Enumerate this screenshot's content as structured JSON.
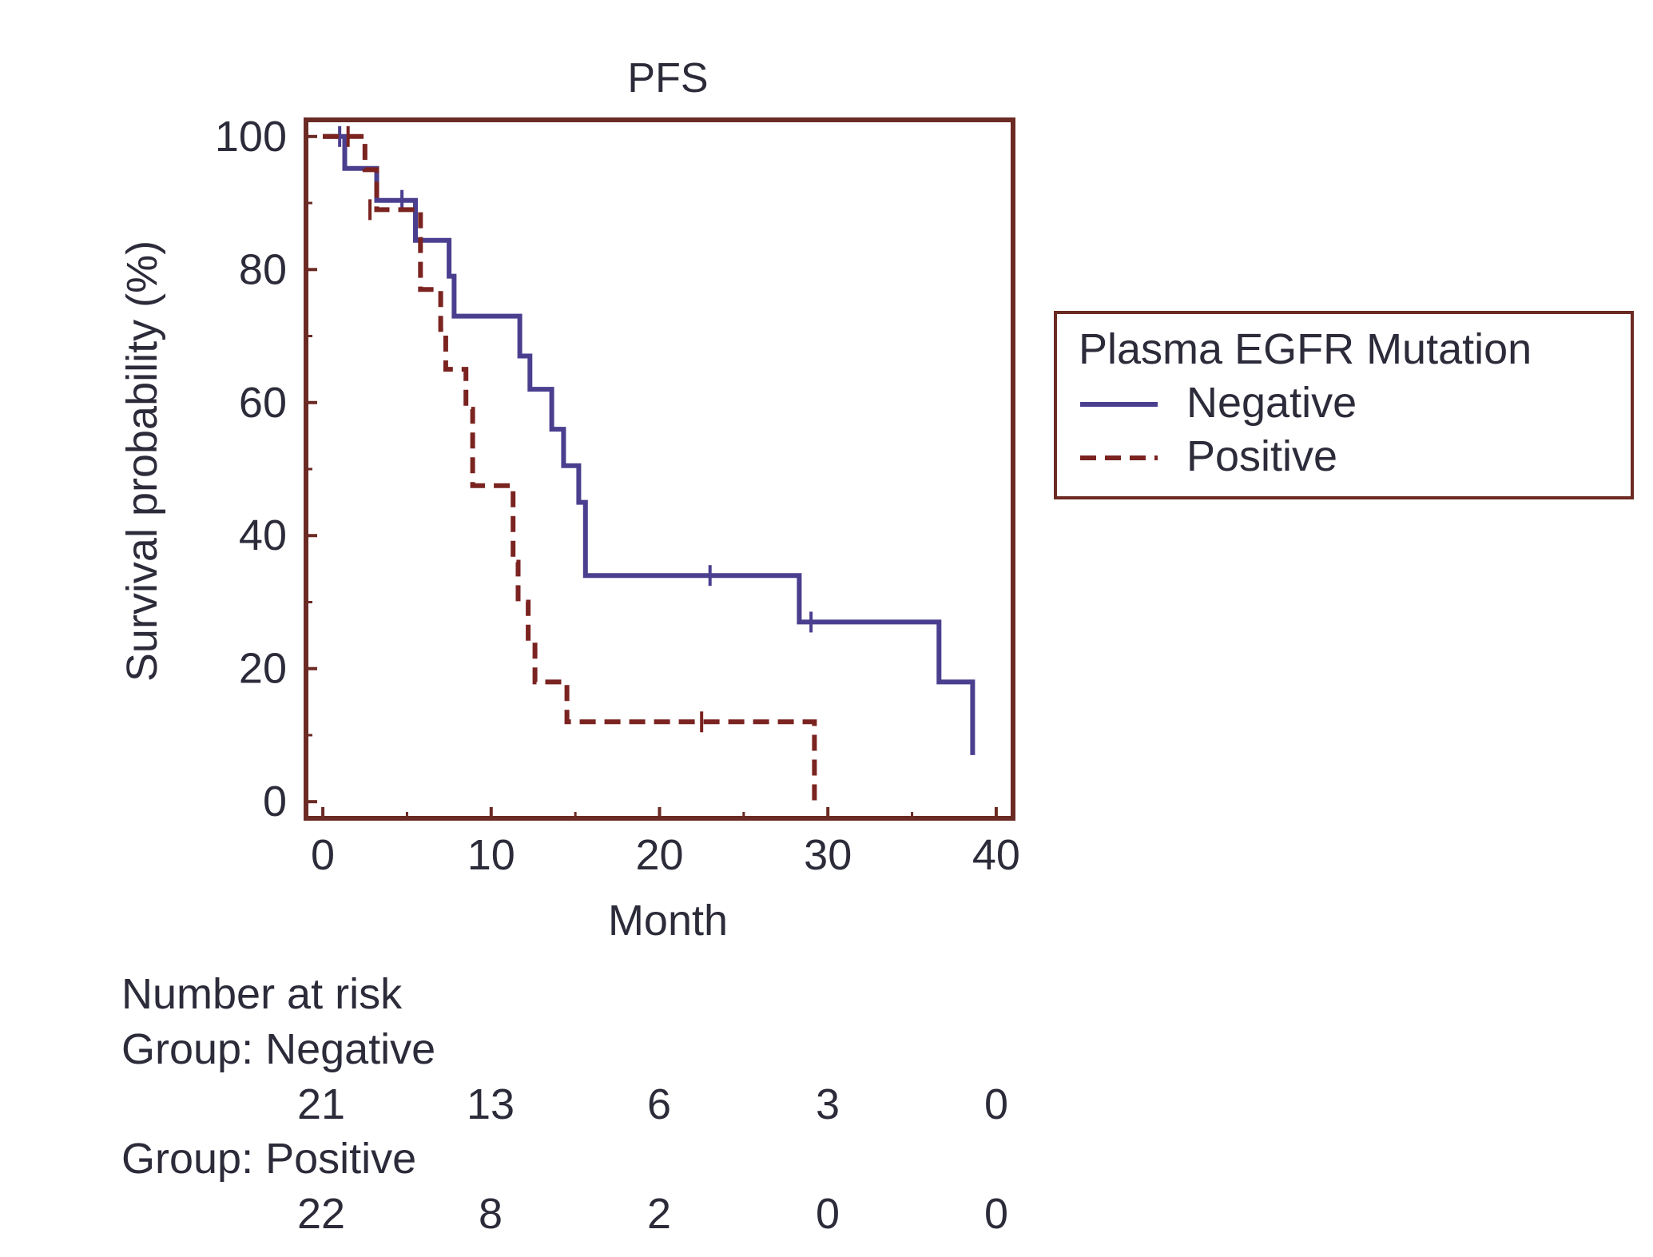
{
  "colors": {
    "negative": "#4a3f8f",
    "positive": "#7a2320",
    "frame": "#6b2a24",
    "text": "#2b2b3a"
  },
  "chart_data": {
    "type": "line",
    "title": "PFS",
    "xlabel": "Month",
    "ylabel": "Survival probability (%)",
    "xlim": [
      -1,
      41
    ],
    "ylim": [
      -2.5,
      102.5
    ],
    "xticks": [
      "0",
      "10",
      "20",
      "30",
      "40"
    ],
    "yticks": [
      "0",
      "20",
      "40",
      "60",
      "80",
      "100"
    ],
    "grid": false,
    "legend": {
      "title": "Plasma EGFR Mutation",
      "position": "right",
      "entries": [
        "Negative",
        "Positive"
      ]
    },
    "series": [
      {
        "name": "Negative",
        "style": "solid",
        "x": [
          0,
          1.3,
          1.3,
          3.2,
          3.2,
          5.5,
          5.5,
          7.5,
          7.5,
          7.8,
          7.8,
          11.7,
          11.7,
          12.3,
          12.3,
          13.6,
          13.6,
          14.3,
          14.3,
          15.2,
          15.2,
          15.6,
          15.6,
          28.3,
          28.3,
          36.6,
          36.6,
          38.6,
          38.6
        ],
        "y": [
          100,
          100,
          95.2,
          95.2,
          90.4,
          90.4,
          84.4,
          84.4,
          79,
          79,
          73,
          73,
          67,
          67,
          62,
          62,
          56,
          56,
          50.5,
          50.5,
          45,
          45,
          34,
          34,
          27,
          27,
          18,
          18,
          7
        ],
        "censored": [
          [
            1.0,
            100
          ],
          [
            4.7,
            90.4
          ],
          [
            23.0,
            34
          ],
          [
            29.0,
            27
          ]
        ]
      },
      {
        "name": "Positive",
        "style": "dashed",
        "x": [
          0,
          2.5,
          2.5,
          3.2,
          3.2,
          5.8,
          5.8,
          7.0,
          7.0,
          7.3,
          7.3,
          8.5,
          8.5,
          8.9,
          8.9,
          11.3,
          11.3,
          11.6,
          11.6,
          12.2,
          12.2,
          12.6,
          12.6,
          14.5,
          14.5,
          29.2,
          29.2
        ],
        "y": [
          100,
          100,
          95,
          95,
          89,
          89,
          77,
          77,
          71,
          71,
          65,
          65,
          59,
          59,
          47.5,
          47.5,
          36,
          36,
          30,
          30,
          24,
          24,
          18,
          18,
          12,
          12,
          0
        ],
        "censored": [
          [
            1.5,
            100
          ],
          [
            2.8,
            89
          ],
          [
            22.5,
            12
          ]
        ]
      }
    ],
    "risk_table": {
      "heading": "Number at risk",
      "time_points": [
        0,
        10,
        20,
        30,
        40
      ],
      "groups": [
        {
          "label": "Group: Negative",
          "counts": [
            "21",
            "13",
            "6",
            "3",
            "0"
          ]
        },
        {
          "label": "Group: Positive",
          "counts": [
            "22",
            "8",
            "2",
            "0",
            "0"
          ]
        }
      ]
    }
  }
}
